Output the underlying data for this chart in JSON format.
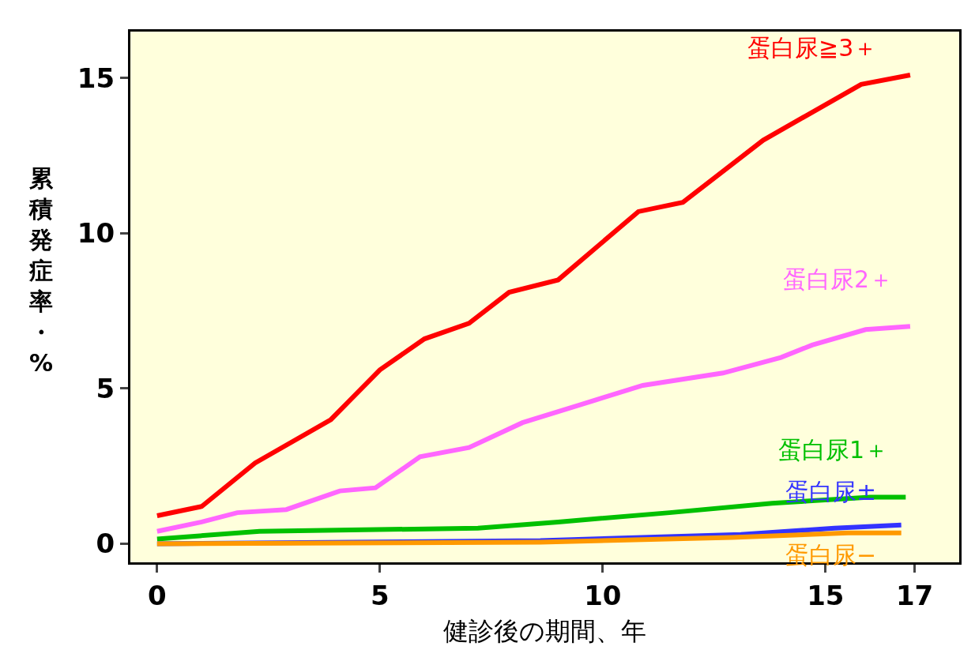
{
  "chart_data": {
    "type": "line",
    "xlabel": "健診後の期間、年",
    "ylabel": "累積発症率・%",
    "xlim": [
      -0.6,
      18
    ],
    "ylim": [
      -0.6,
      16.5
    ],
    "xticks": [
      0,
      5,
      10,
      15,
      17
    ],
    "yticks": [
      0,
      5,
      10,
      15
    ],
    "grid": false,
    "legend": false,
    "marker": "none",
    "line_style": "solid",
    "series": [
      {
        "name": "蛋白尿≧3＋",
        "color": "#ff0000",
        "x": [
          0,
          1.0,
          2.2,
          3.9,
          5.0,
          6.0,
          7.0,
          7.9,
          9.0,
          10.8,
          11.8,
          13.6,
          15.8,
          16.9
        ],
        "values": [
          0.9,
          1.2,
          2.6,
          4.0,
          5.6,
          6.6,
          7.1,
          8.1,
          8.5,
          10.7,
          11.0,
          13.0,
          14.8,
          15.1
        ]
      },
      {
        "name": "蛋白尿2＋",
        "color": "#ff66ff",
        "x": [
          0,
          1.0,
          1.8,
          2.9,
          4.1,
          4.9,
          5.9,
          7.0,
          8.2,
          10.0,
          10.9,
          12.7,
          14.0,
          14.7,
          15.9,
          16.9
        ],
        "values": [
          0.4,
          0.7,
          1.0,
          1.1,
          1.7,
          1.8,
          2.8,
          3.1,
          3.9,
          4.7,
          5.1,
          5.5,
          6.0,
          6.4,
          6.9,
          7.0
        ]
      },
      {
        "name": "蛋白尿1＋",
        "color": "#00c000",
        "x": [
          0,
          2.3,
          7.2,
          9.0,
          11.5,
          13.8,
          16.0,
          16.8
        ],
        "values": [
          0.15,
          0.4,
          0.5,
          0.7,
          1.0,
          1.3,
          1.5,
          1.5
        ]
      },
      {
        "name": "蛋白尿±",
        "color": "#3333ff",
        "x": [
          0,
          8.6,
          13.1,
          15.2,
          16.7
        ],
        "values": [
          0,
          0.1,
          0.3,
          0.5,
          0.6
        ]
      },
      {
        "name": "蛋白尿−",
        "color": "#ff9900",
        "x": [
          0,
          8.6,
          12.9,
          15.5,
          16.7
        ],
        "values": [
          0,
          0.05,
          0.2,
          0.35,
          0.35
        ]
      }
    ]
  }
}
